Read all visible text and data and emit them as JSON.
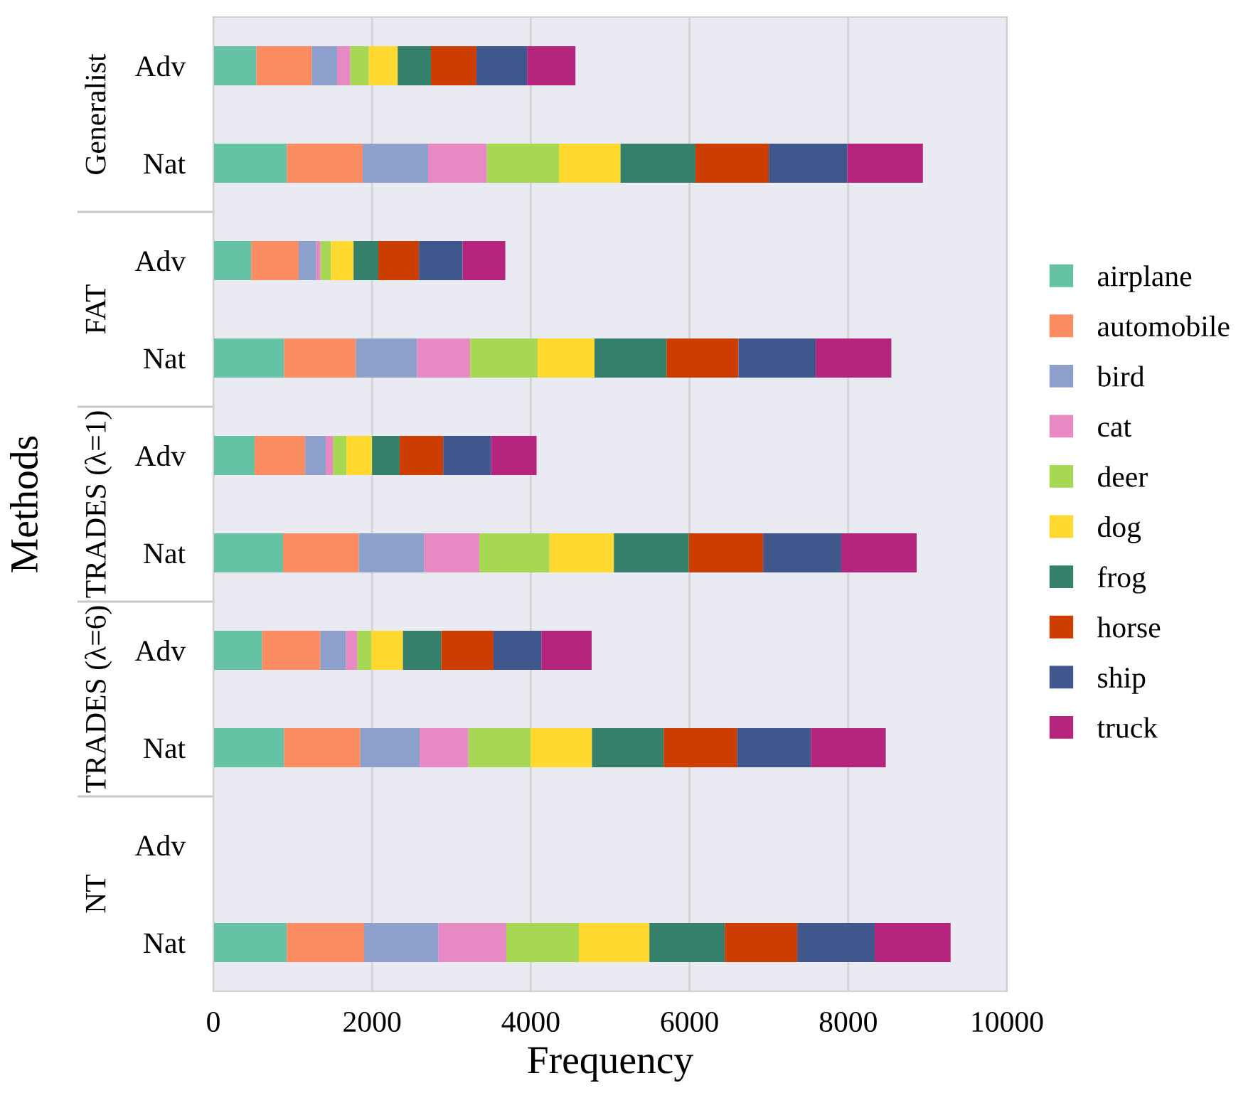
{
  "chart_data": {
    "type": "bar",
    "orientation": "horizontal",
    "stacked": true,
    "categories": [
      "Adv",
      "Nat",
      "Adv",
      "Nat",
      "Adv",
      "Nat",
      "Adv",
      "Nat",
      "Adv",
      "Nat"
    ],
    "annotations": [
      "Generalist",
      "FAT",
      "TRADES (λ=1)",
      "TRADES (λ=6)",
      "NT"
    ],
    "xlabel": "Frequency",
    "ylabel": "Methods",
    "xlim": [
      0,
      10000
    ],
    "xticks": [
      0,
      2000,
      4000,
      6000,
      8000,
      10000
    ],
    "grid": "x",
    "legend": "right",
    "series": [
      {
        "name": "airplane",
        "color": "#66c2a5",
        "values": [
          543,
          925,
          477,
          891,
          520,
          878,
          615,
          891,
          null,
          925
        ]
      },
      {
        "name": "automobile",
        "color": "#fc8d62",
        "values": [
          699,
          957,
          598,
          906,
          638,
          955,
          734,
          960,
          null,
          975
        ]
      },
      {
        "name": "bird",
        "color": "#8da0cb",
        "values": [
          317,
          824,
          221,
          771,
          258,
          825,
          323,
          748,
          null,
          937
        ]
      },
      {
        "name": "cat",
        "color": "#e78ac3",
        "values": [
          167,
          740,
          55,
          669,
          95,
          693,
          143,
          616,
          null,
          855
        ]
      },
      {
        "name": "deer",
        "color": "#a6d854",
        "values": [
          233,
          909,
          130,
          849,
          166,
          884,
          174,
          781,
          null,
          914
        ]
      },
      {
        "name": "dog",
        "color": "#ffd92f",
        "values": [
          364,
          776,
          286,
          717,
          323,
          812,
          400,
          776,
          null,
          889
        ]
      },
      {
        "name": "frog",
        "color": "#35806b",
        "values": [
          419,
          944,
          312,
          907,
          348,
          944,
          484,
          902,
          null,
          950
        ]
      },
      {
        "name": "horse",
        "color": "#cc3d00",
        "values": [
          573,
          925,
          512,
          908,
          548,
          937,
          657,
          926,
          null,
          913
        ]
      },
      {
        "name": "ship",
        "color": "#3f578c",
        "values": [
          638,
          989,
          551,
          973,
          604,
          984,
          603,
          930,
          null,
          975
        ]
      },
      {
        "name": "truck",
        "color": "#b5257e",
        "values": [
          610,
          952,
          537,
          952,
          573,
          950,
          634,
          943,
          null,
          957
        ]
      }
    ]
  }
}
